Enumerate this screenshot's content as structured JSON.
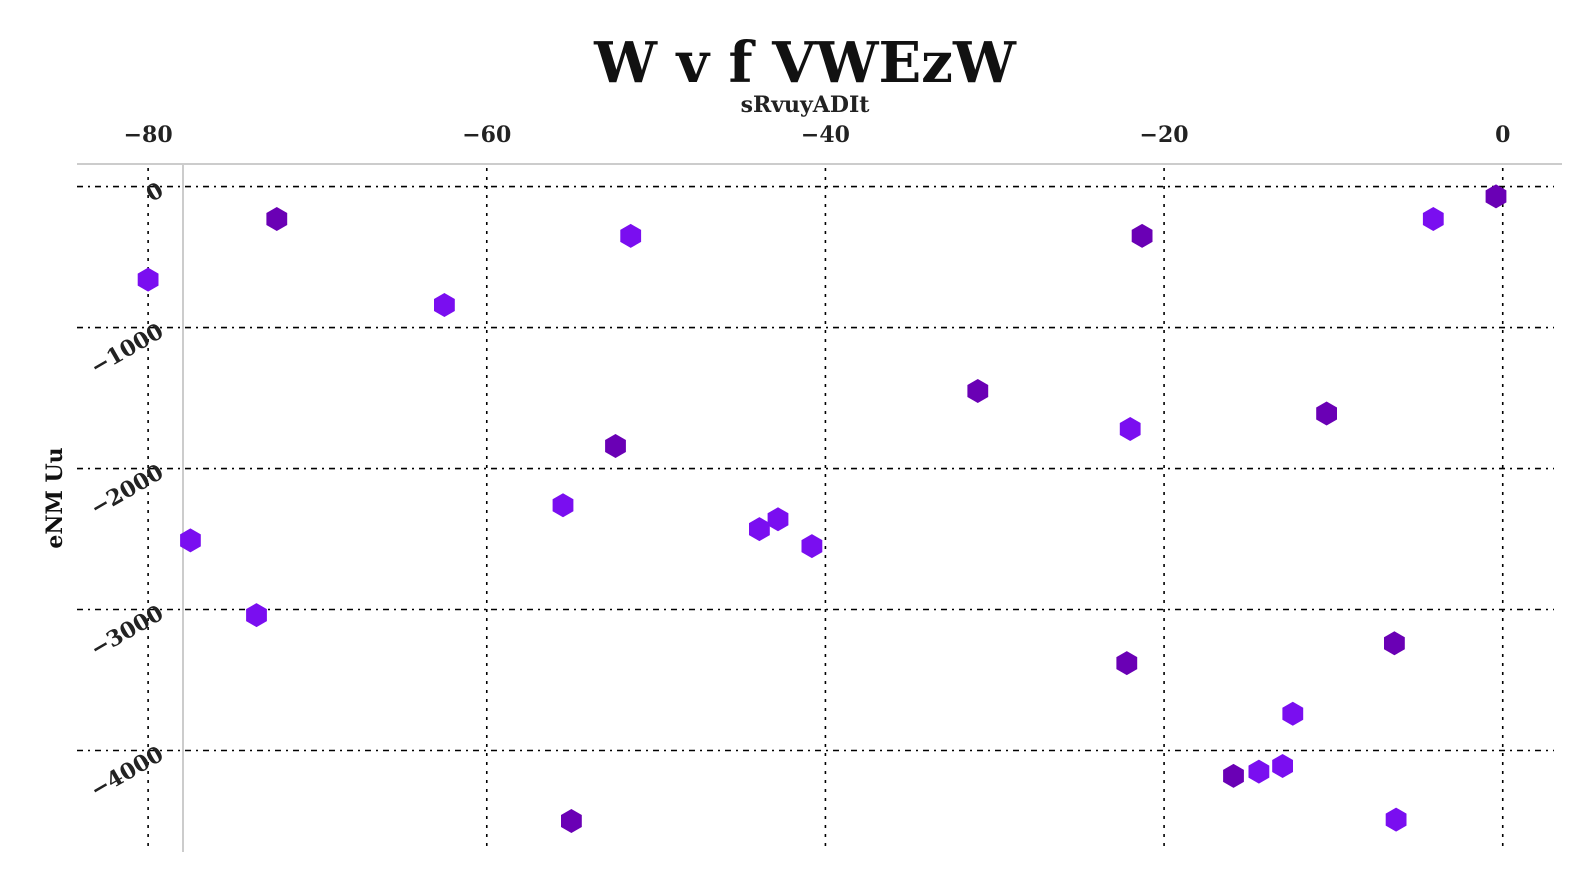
{
  "chart_data": {
    "type": "scatter",
    "title": "W v f VWEzW",
    "xlabel": "sRvuyADIt",
    "ylabel": "eNM Uu",
    "xlim": [
      -84.2,
      3.5
    ],
    "ylim": [
      -4.72,
      0.16
    ],
    "x_ticks": [
      {
        "value": -80,
        "label": "−80"
      },
      {
        "value": -60,
        "label": "−60"
      },
      {
        "value": -40,
        "label": "−40"
      },
      {
        "value": -20,
        "label": "−20"
      },
      {
        "value": 0,
        "label": "0"
      }
    ],
    "y_ticks": [
      {
        "value": 0,
        "label": "0"
      },
      {
        "value": -1,
        "label": "−1000"
      },
      {
        "value": -2,
        "label": "−2000"
      },
      {
        "value": -3,
        "label": "−3000"
      },
      {
        "value": -4,
        "label": "−4000"
      }
    ],
    "x_axis_position": "top",
    "grid": true,
    "marker": "hexagon",
    "colors": {
      "purple_dark": "#6a00b5",
      "purple_bright": "#7a0ef0"
    },
    "series": [
      {
        "x": [
          -0.4,
          -4.1,
          -21.3,
          -51.5,
          -72.4,
          -80.0,
          -62.5,
          -31.0,
          -22.0,
          -10.4,
          -52.4,
          -55.5,
          -77.5,
          -43.9,
          -42.8,
          -40.8,
          -73.6,
          -6.4,
          -22.2,
          -12.4,
          -13.0,
          -14.4,
          -15.9,
          -55.0,
          -6.3
        ],
        "y": [
          -0.07,
          -0.23,
          -0.35,
          -0.35,
          -0.23,
          -0.66,
          -0.84,
          -1.45,
          -1.72,
          -1.61,
          -1.84,
          -2.26,
          -2.51,
          -2.43,
          -2.36,
          -2.55,
          -3.04,
          -3.24,
          -3.38,
          -3.74,
          -4.11,
          -4.15,
          -4.18,
          -4.5,
          -4.49
        ],
        "colors": [
          "#6a00b5",
          "#7a0ef0",
          "#6a00b5",
          "#7a0ef0",
          "#6a00b5",
          "#7a0ef0",
          "#7a0ef0",
          "#6a00b5",
          "#7a0ef0",
          "#6a00b5",
          "#6a00b5",
          "#7a0ef0",
          "#7a0ef0",
          "#7a0ef0",
          "#7a0ef0",
          "#7a0ef0",
          "#7a0ef0",
          "#6a00b5",
          "#6a00b5",
          "#7a0ef0",
          "#7a0ef0",
          "#7a0ef0",
          "#6a00b5",
          "#6a00b5",
          "#7a0ef0"
        ]
      }
    ]
  }
}
